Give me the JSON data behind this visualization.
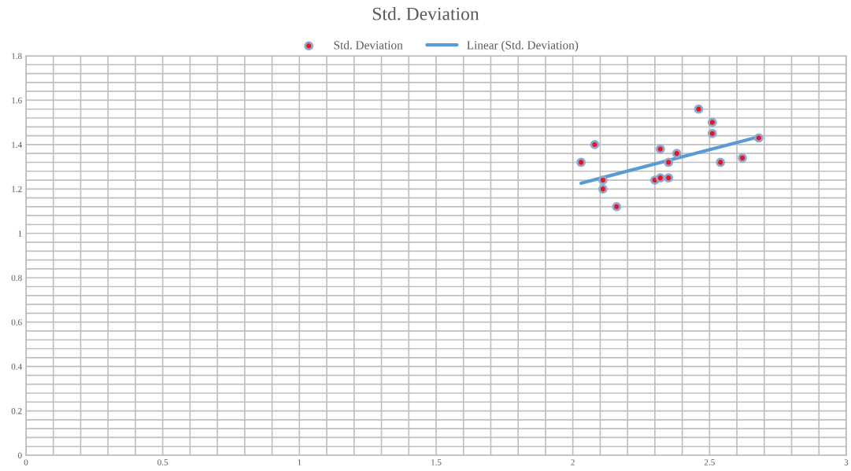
{
  "chart_data": {
    "type": "scatter",
    "title": "Std. Deviation",
    "xlim": [
      0,
      3
    ],
    "ylim": [
      0,
      1.8
    ],
    "xticks": [
      0,
      0.5,
      1,
      1.5,
      2,
      2.5,
      3
    ],
    "yticks": [
      0,
      0.2,
      0.4,
      0.6,
      0.8,
      1,
      1.2,
      1.4,
      1.6,
      1.8
    ],
    "grid": true,
    "legend": "top",
    "series": [
      {
        "name": "Std. Deviation",
        "color": "#e8141e",
        "marker": "circle",
        "x": [
          2.03,
          2.08,
          2.11,
          2.11,
          2.16,
          2.3,
          2.32,
          2.35,
          2.32,
          2.35,
          2.38,
          2.46,
          2.51,
          2.51,
          2.54,
          2.62,
          2.68
        ],
        "values": [
          1.32,
          1.4,
          1.24,
          1.2,
          1.12,
          1.24,
          1.25,
          1.25,
          1.38,
          1.32,
          1.36,
          1.56,
          1.5,
          1.45,
          1.32,
          1.34,
          1.43
        ]
      },
      {
        "name": "Linear (Std. Deviation)",
        "color": "#5b9bd5",
        "type": "line",
        "marker": "none",
        "x": [
          2.03,
          2.68
        ],
        "values": [
          1.226,
          1.435
        ]
      }
    ]
  }
}
